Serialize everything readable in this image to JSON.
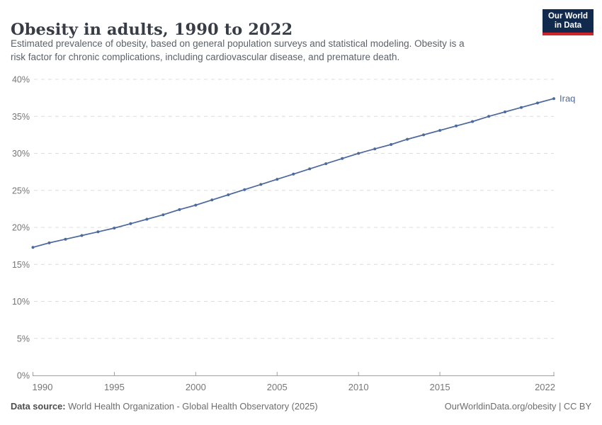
{
  "header": {
    "title": "Obesity in adults, 1990 to 2022",
    "subtitle_line1": "Estimated prevalence of obesity, based on general population surveys and statistical modeling. Obesity is a",
    "subtitle_line2": "risk factor for chronic complications, including cardiovascular disease, and premature death.",
    "logo": {
      "line1": "Our World",
      "line2": "in Data",
      "bg_color": "#12294e",
      "accent_color": "#d1232a"
    }
  },
  "chart_data": {
    "type": "line",
    "title": "Obesity in adults, 1990 to 2022",
    "x": [
      1990,
      1991,
      1992,
      1993,
      1994,
      1995,
      1996,
      1997,
      1998,
      1999,
      2000,
      2001,
      2002,
      2003,
      2004,
      2005,
      2006,
      2007,
      2008,
      2009,
      2010,
      2011,
      2012,
      2013,
      2014,
      2015,
      2016,
      2017,
      2018,
      2019,
      2020,
      2021,
      2022
    ],
    "series": [
      {
        "name": "Iraq",
        "color": "#4c6a9c",
        "values": [
          17.3,
          17.9,
          18.4,
          18.9,
          19.4,
          19.9,
          20.5,
          21.1,
          21.7,
          22.4,
          23.0,
          23.7,
          24.4,
          25.1,
          25.8,
          26.5,
          27.2,
          27.9,
          28.6,
          29.3,
          30.0,
          30.6,
          31.2,
          31.9,
          32.5,
          33.1,
          33.7,
          34.3,
          35.0,
          35.6,
          36.2,
          36.8,
          37.4
        ]
      }
    ],
    "xlabel": "",
    "ylabel": "",
    "ylim": [
      0,
      40
    ],
    "y_ticks": [
      0,
      5,
      10,
      15,
      20,
      25,
      30,
      35,
      40
    ],
    "y_tick_suffix": "%",
    "x_ticks": [
      1990,
      1995,
      2000,
      2005,
      2010,
      2015,
      2022
    ],
    "grid": "horizontal-dashed",
    "legend": "end-of-line-label",
    "colors": {
      "line": "#4c6a9c",
      "gridline": "#dcdcdc",
      "axis": "#a0a0a0",
      "tick_text": "#767676"
    }
  },
  "footer": {
    "datasource_label": "Data source:",
    "datasource_text": " World Health Organization - Global Health Observatory (2025)",
    "credit_text": "OurWorldinData.org/obesity | CC BY"
  }
}
